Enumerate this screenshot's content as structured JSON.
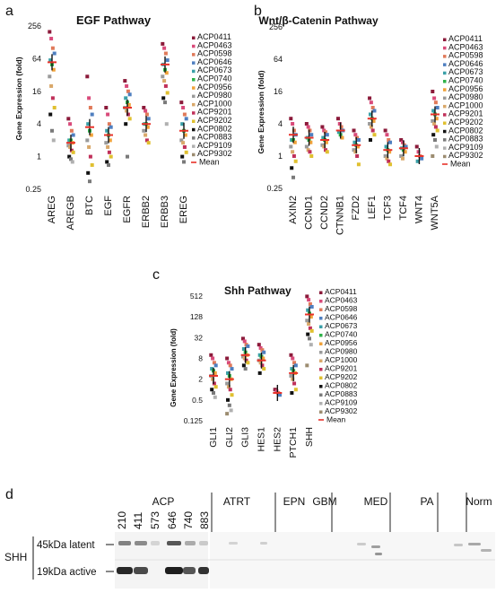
{
  "sample_ids": [
    "ACP0411",
    "ACP0463",
    "ACP0598",
    "ACP0646",
    "ACP0673",
    "ACP0740",
    "ACP0956",
    "ACP0980",
    "ACP1000",
    "ACP9201",
    "ACP9202",
    "ACP0802",
    "ACP0883",
    "ACP9109",
    "ACP9302"
  ],
  "sample_colors": [
    "#8b1a3a",
    "#d94a7a",
    "#e07a5a",
    "#4f7fc0",
    "#3aa0a8",
    "#2fb24a",
    "#f0a23a",
    "#9a9a9a",
    "#d9a86a",
    "#c0305a",
    "#e0c030",
    "#111111",
    "#7a7a7a",
    "#b0b0b0",
    "#9c8c70"
  ],
  "mean_label": "Mean",
  "mean_color": "#e8322a",
  "chart_data": [
    {
      "panel": "a",
      "type": "scatter",
      "title": "EGF Pathway",
      "ylabel": "Gene Expression (fold)",
      "yscale": "log2",
      "ylim": [
        0.25,
        256
      ],
      "yticks": [
        "0.25",
        "1",
        "4",
        "16",
        "64",
        "256"
      ],
      "categories": [
        "AREG",
        "AREGB",
        "BTC",
        "EGF",
        "EGFR",
        "ERBB2",
        "ERBB3",
        "EREG"
      ],
      "points": [
        [
          200,
          150,
          100,
          80,
          60,
          50,
          40,
          30,
          20,
          12,
          8,
          6,
          3,
          2
        ],
        [
          5,
          4,
          3,
          2.5,
          2,
          2,
          1.8,
          1.6,
          1.5,
          1.3,
          1.2,
          1,
          0.9,
          0.8
        ],
        [
          30,
          12,
          8,
          6,
          4,
          3,
          2.5,
          2,
          1.5,
          1,
          0.7,
          0.5,
          0.35
        ],
        [
          8,
          6,
          4,
          3.5,
          3,
          2.5,
          2,
          1.8,
          1.5,
          1.2,
          1,
          0.8,
          0.7
        ],
        [
          25,
          20,
          16,
          14,
          12,
          10,
          9,
          8,
          7,
          6,
          5,
          4,
          1
        ],
        [
          8,
          7,
          6,
          5,
          4,
          4,
          3.5,
          3,
          2.5,
          2,
          1.8
        ],
        [
          120,
          100,
          80,
          60,
          50,
          40,
          35,
          30,
          25,
          20,
          15,
          12,
          10,
          4
        ],
        [
          10,
          8,
          6,
          5,
          4,
          3,
          2.5,
          2,
          1.8,
          1.5,
          1.2,
          1,
          0.8
        ]
      ],
      "means": [
        55,
        1.8,
        3.5,
        2.5,
        8,
        4,
        50,
        3
      ]
    },
    {
      "panel": "b",
      "type": "scatter",
      "title": "Wnt/β-Catenin Pathway",
      "ylabel": "Gene Expression (fold)",
      "yscale": "log2",
      "ylim": [
        0.25,
        256
      ],
      "yticks": [
        "0.25",
        "1",
        "4",
        "16",
        "64",
        "256"
      ],
      "categories": [
        "AXIN2",
        "CCND1",
        "CCND2",
        "CTNNB1",
        "FZD2",
        "LEF1",
        "TCF3",
        "TCF4",
        "WNT4",
        "WNT5A"
      ],
      "points": [
        [
          5,
          4,
          3,
          2.5,
          2,
          2,
          1.8,
          1.5,
          1.2,
          1,
          0.8,
          0.6,
          0.4
        ],
        [
          4,
          3.5,
          3,
          2.5,
          2.2,
          2,
          1.8,
          1.5,
          1.3,
          1.2,
          1
        ],
        [
          3.5,
          3,
          2.8,
          2.5,
          2.2,
          2,
          1.8,
          1.6,
          1.5,
          1.3,
          1.2
        ],
        [
          5,
          4,
          3.5,
          3,
          2.8,
          2.5,
          2.2
        ],
        [
          3,
          2.5,
          2.2,
          2,
          1.8,
          1.6,
          1.5,
          1.3,
          1.2,
          1,
          0.7
        ],
        [
          12,
          10,
          8,
          7,
          6,
          5,
          4.5,
          4,
          3.5,
          3,
          2.5,
          2
        ],
        [
          3,
          2.5,
          2,
          1.8,
          1.5,
          1.3,
          1.2,
          1,
          0.9,
          0.8,
          0.7
        ],
        [
          2,
          1.8,
          1.6,
          1.5,
          1.4,
          1.3,
          1.2,
          1,
          0.9
        ],
        [
          1.5,
          1.2,
          1,
          0.9,
          0.8
        ],
        [
          16,
          12,
          10,
          8,
          7,
          6,
          5,
          4.5,
          4,
          3.5,
          3,
          2.5,
          2,
          1.5,
          1
        ]
      ],
      "means": [
        2.5,
        2.2,
        2,
        3,
        1.6,
        5,
        1.3,
        1.4,
        1,
        6
      ]
    },
    {
      "panel": "c",
      "type": "scatter",
      "title": "Shh Pathway",
      "ylabel": "Gene Expression (fold)",
      "yscale": "log2",
      "ylim": [
        0.125,
        512
      ],
      "yticks": [
        "0.125",
        "0.5",
        "2",
        "8",
        "32",
        "128",
        "512"
      ],
      "categories": [
        "GLI1",
        "GLI2",
        "GLI3",
        "HES1",
        "HES2",
        "PTCH1",
        "SHH"
      ],
      "points": [
        [
          10,
          8,
          6,
          5,
          4,
          3.5,
          3,
          2.5,
          2,
          1.5,
          1.2,
          1,
          0.8,
          0.6
        ],
        [
          8,
          6,
          5,
          4,
          3,
          2.5,
          2,
          1.5,
          1.2,
          1,
          0.7,
          0.5,
          0.35,
          0.25,
          0.2
        ],
        [
          30,
          25,
          20,
          18,
          15,
          12,
          10,
          9,
          8,
          7,
          6,
          5,
          4
        ],
        [
          20,
          16,
          14,
          12,
          10,
          9,
          8,
          7,
          6,
          5,
          4,
          3
        ],
        [
          1,
          0.9,
          0.8,
          0.7
        ],
        [
          10,
          8,
          6,
          5,
          4,
          3.5,
          3,
          2.5,
          2,
          1.5,
          1,
          0.8
        ],
        [
          500,
          400,
          300,
          250,
          200,
          160,
          128,
          100,
          80,
          60,
          50,
          40,
          30,
          20,
          5
        ]
      ],
      "means": [
        2.5,
        2,
        10,
        7,
        0.8,
        3,
        150
      ]
    }
  ],
  "panel_labels": {
    "a": "a",
    "b": "b",
    "c": "c",
    "d": "d"
  },
  "blot": {
    "group_acp": "ACP",
    "lanes_acp": [
      "210",
      "411",
      "573",
      "646",
      "740",
      "883"
    ],
    "groups": [
      "ATRT",
      "EPN",
      "GBM",
      "MED",
      "PA",
      "Norm"
    ],
    "gene": "SHH",
    "band_latent": "45kDa latent",
    "band_active": "19kDa active"
  }
}
